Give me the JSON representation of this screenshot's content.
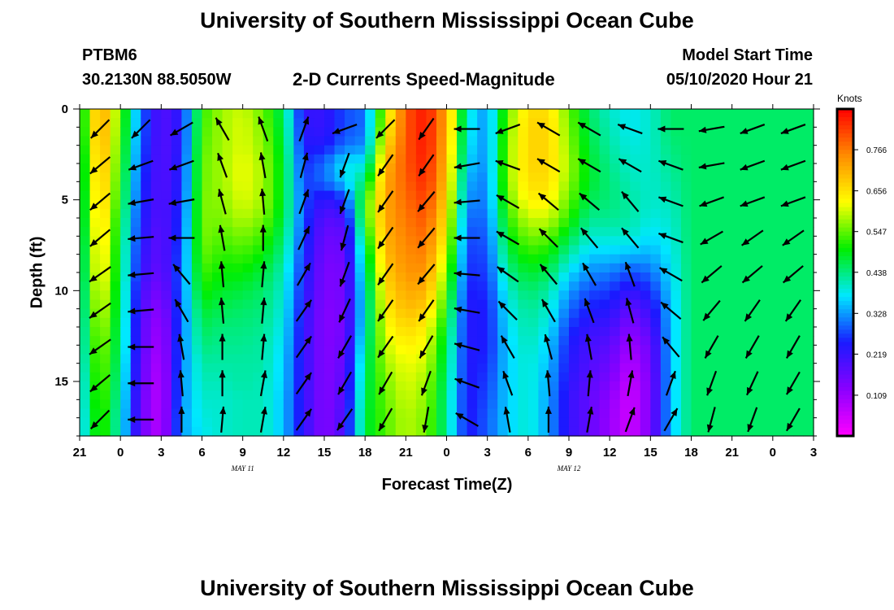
{
  "titles": {
    "top": "University of Southern Mississippi Ocean Cube",
    "bottom": "University of Southern Mississippi Ocean Cube",
    "station": "PTBM6",
    "coords": "30.2130N 88.5050W",
    "subtitle": "2-D Currents Speed-Magnitude",
    "model_start_label": "Model Start Time",
    "model_start_value": "05/10/2020 Hour 21"
  },
  "chart_data": {
    "type": "heatmap",
    "title": "2-D Currents Speed-Magnitude",
    "xlabel": "Forecast Time(Z)",
    "ylabel": "Depth (ft)",
    "x_ticks": [
      "21",
      "0",
      "3",
      "6",
      "9",
      "12",
      "15",
      "18",
      "21",
      "0",
      "3",
      "6",
      "9",
      "12",
      "15",
      "18",
      "21",
      "0",
      "3"
    ],
    "x_tick_hours": [
      0,
      3,
      6,
      9,
      12,
      15,
      18,
      21,
      24,
      27,
      30,
      33,
      36,
      39,
      42,
      45,
      48,
      51,
      54
    ],
    "day_labels": [
      {
        "label": "MAY 11",
        "hour": 12
      },
      {
        "label": "MAY 12",
        "hour": 36
      }
    ],
    "xlim": [
      0,
      54
    ],
    "y_ticks": [
      0,
      5,
      10,
      15
    ],
    "ylim": [
      0,
      18
    ],
    "y_direction": "down",
    "colorbar": {
      "title": "Knots",
      "ticks": [
        0.109,
        0.219,
        0.328,
        0.438,
        0.547,
        0.656,
        0.766
      ],
      "range": [
        0,
        0.875
      ],
      "colors": [
        "#ff00ff",
        "#8a00ff",
        "#1a1aff",
        "#00e8ff",
        "#00ee00",
        "#ffff00",
        "#ff8c00",
        "#ff0000"
      ]
    },
    "speed_profile_knots": [
      {
        "hour": 0.0,
        "values": [
          0.45,
          0.45,
          0.44,
          0.43,
          0.43,
          0.42,
          0.42,
          0.41,
          0.4,
          0.4,
          0.39,
          0.39,
          0.38,
          0.38,
          0.37,
          0.36,
          0.36,
          0.35,
          0.35
        ]
      },
      {
        "hour": 1.5,
        "values": [
          0.74,
          0.74,
          0.73,
          0.72,
          0.71,
          0.7,
          0.69,
          0.68,
          0.67,
          0.66,
          0.64,
          0.62,
          0.6,
          0.58,
          0.57,
          0.56,
          0.55,
          0.54,
          0.54
        ]
      },
      {
        "hour": 3.0,
        "values": [
          0.55,
          0.54,
          0.53,
          0.52,
          0.51,
          0.5,
          0.48,
          0.47,
          0.46,
          0.46,
          0.45,
          0.45,
          0.44,
          0.44,
          0.43,
          0.42,
          0.41,
          0.4,
          0.4
        ]
      },
      {
        "hour": 4.5,
        "values": [
          0.3,
          0.3,
          0.29,
          0.28,
          0.27,
          0.26,
          0.25,
          0.24,
          0.23,
          0.22,
          0.2,
          0.19,
          0.18,
          0.18,
          0.17,
          0.17,
          0.16,
          0.16,
          0.16
        ]
      },
      {
        "hour": 6.0,
        "values": [
          0.18,
          0.18,
          0.18,
          0.18,
          0.18,
          0.18,
          0.18,
          0.17,
          0.17,
          0.16,
          0.14,
          0.12,
          0.1,
          0.09,
          0.08,
          0.07,
          0.07,
          0.07,
          0.07
        ]
      },
      {
        "hour": 7.5,
        "values": [
          0.24,
          0.24,
          0.24,
          0.25,
          0.25,
          0.26,
          0.27,
          0.28,
          0.29,
          0.3,
          0.3,
          0.3,
          0.3,
          0.31,
          0.31,
          0.32,
          0.32,
          0.33,
          0.33
        ]
      },
      {
        "hour": 9.0,
        "values": [
          0.52,
          0.53,
          0.54,
          0.55,
          0.55,
          0.56,
          0.56,
          0.56,
          0.55,
          0.53,
          0.51,
          0.48,
          0.46,
          0.44,
          0.42,
          0.41,
          0.4,
          0.39,
          0.38
        ]
      },
      {
        "hour": 10.5,
        "values": [
          0.58,
          0.58,
          0.58,
          0.58,
          0.58,
          0.57,
          0.56,
          0.54,
          0.52,
          0.5,
          0.48,
          0.46,
          0.44,
          0.43,
          0.42,
          0.41,
          0.4,
          0.4,
          0.4
        ]
      },
      {
        "hour": 12.0,
        "values": [
          0.6,
          0.61,
          0.61,
          0.62,
          0.62,
          0.61,
          0.59,
          0.56,
          0.53,
          0.5,
          0.47,
          0.45,
          0.44,
          0.43,
          0.42,
          0.42,
          0.41,
          0.41,
          0.41
        ]
      },
      {
        "hour": 13.5,
        "values": [
          0.55,
          0.56,
          0.57,
          0.58,
          0.58,
          0.58,
          0.56,
          0.53,
          0.5,
          0.47,
          0.45,
          0.44,
          0.43,
          0.42,
          0.42,
          0.41,
          0.41,
          0.41,
          0.41
        ]
      },
      {
        "hour": 15.0,
        "values": [
          0.45,
          0.46,
          0.47,
          0.48,
          0.48,
          0.48,
          0.47,
          0.45,
          0.43,
          0.41,
          0.4,
          0.39,
          0.38,
          0.37,
          0.36,
          0.36,
          0.35,
          0.35,
          0.35
        ]
      },
      {
        "hour": 16.5,
        "values": [
          0.22,
          0.23,
          0.24,
          0.26,
          0.27,
          0.28,
          0.28,
          0.27,
          0.26,
          0.25,
          0.24,
          0.23,
          0.22,
          0.22,
          0.22,
          0.22,
          0.22,
          0.22,
          0.22
        ]
      },
      {
        "hour": 18.0,
        "values": [
          0.22,
          0.22,
          0.24,
          0.3,
          0.3,
          0.22,
          0.18,
          0.16,
          0.15,
          0.14,
          0.14,
          0.13,
          0.13,
          0.13,
          0.13,
          0.13,
          0.13,
          0.13,
          0.13
        ]
      },
      {
        "hour": 19.5,
        "values": [
          0.28,
          0.28,
          0.3,
          0.38,
          0.36,
          0.26,
          0.2,
          0.17,
          0.16,
          0.15,
          0.15,
          0.15,
          0.15,
          0.16,
          0.17,
          0.18,
          0.19,
          0.2,
          0.2
        ]
      },
      {
        "hour": 21.0,
        "values": [
          0.3,
          0.3,
          0.32,
          0.38,
          0.45,
          0.52,
          0.52,
          0.48,
          0.44,
          0.42,
          0.4,
          0.39,
          0.4,
          0.42,
          0.44,
          0.45,
          0.46,
          0.47,
          0.47
        ]
      },
      {
        "hour": 22.5,
        "values": [
          0.6,
          0.62,
          0.66,
          0.7,
          0.72,
          0.72,
          0.72,
          0.71,
          0.7,
          0.68,
          0.66,
          0.64,
          0.62,
          0.6,
          0.58,
          0.56,
          0.55,
          0.54,
          0.54
        ]
      },
      {
        "hour": 24.0,
        "values": [
          0.8,
          0.8,
          0.8,
          0.8,
          0.79,
          0.78,
          0.77,
          0.76,
          0.75,
          0.74,
          0.72,
          0.7,
          0.67,
          0.64,
          0.62,
          0.61,
          0.6,
          0.59,
          0.59
        ]
      },
      {
        "hour": 25.5,
        "values": [
          0.86,
          0.86,
          0.86,
          0.85,
          0.84,
          0.82,
          0.8,
          0.78,
          0.76,
          0.74,
          0.71,
          0.68,
          0.64,
          0.62,
          0.6,
          0.58,
          0.57,
          0.56,
          0.56
        ]
      },
      {
        "hour": 27.0,
        "values": [
          0.72,
          0.72,
          0.71,
          0.7,
          0.69,
          0.67,
          0.65,
          0.63,
          0.6,
          0.57,
          0.54,
          0.51,
          0.48,
          0.46,
          0.45,
          0.44,
          0.43,
          0.43,
          0.43
        ]
      },
      {
        "hour": 28.5,
        "values": [
          0.4,
          0.39,
          0.38,
          0.36,
          0.34,
          0.32,
          0.3,
          0.28,
          0.27,
          0.26,
          0.25,
          0.24,
          0.24,
          0.24,
          0.24,
          0.24,
          0.24,
          0.24,
          0.24
        ]
      },
      {
        "hour": 30.0,
        "values": [
          0.32,
          0.32,
          0.32,
          0.32,
          0.31,
          0.31,
          0.3,
          0.29,
          0.28,
          0.27,
          0.26,
          0.25,
          0.25,
          0.25,
          0.26,
          0.27,
          0.28,
          0.29,
          0.29
        ]
      },
      {
        "hour": 31.5,
        "values": [
          0.55,
          0.56,
          0.57,
          0.57,
          0.57,
          0.55,
          0.52,
          0.49,
          0.46,
          0.43,
          0.4,
          0.38,
          0.37,
          0.36,
          0.36,
          0.36,
          0.36,
          0.36,
          0.36
        ]
      },
      {
        "hour": 33.0,
        "values": [
          0.66,
          0.67,
          0.67,
          0.67,
          0.66,
          0.64,
          0.6,
          0.56,
          0.52,
          0.48,
          0.45,
          0.43,
          0.42,
          0.41,
          0.4,
          0.4,
          0.4,
          0.4,
          0.4
        ]
      },
      {
        "hour": 34.5,
        "values": [
          0.66,
          0.67,
          0.67,
          0.67,
          0.66,
          0.64,
          0.6,
          0.55,
          0.5,
          0.46,
          0.42,
          0.4,
          0.38,
          0.36,
          0.35,
          0.34,
          0.33,
          0.33,
          0.33
        ]
      },
      {
        "hour": 36.0,
        "values": [
          0.55,
          0.56,
          0.57,
          0.58,
          0.57,
          0.55,
          0.52,
          0.47,
          0.42,
          0.37,
          0.33,
          0.3,
          0.27,
          0.25,
          0.24,
          0.23,
          0.22,
          0.22,
          0.22
        ]
      },
      {
        "hour": 37.5,
        "values": [
          0.45,
          0.46,
          0.47,
          0.48,
          0.48,
          0.46,
          0.43,
          0.4,
          0.36,
          0.32,
          0.28,
          0.25,
          0.22,
          0.2,
          0.19,
          0.18,
          0.17,
          0.17,
          0.17
        ]
      },
      {
        "hour": 39.0,
        "values": [
          0.4,
          0.41,
          0.42,
          0.43,
          0.44,
          0.44,
          0.43,
          0.4,
          0.36,
          0.31,
          0.27,
          0.24,
          0.21,
          0.18,
          0.16,
          0.14,
          0.12,
          0.11,
          0.11
        ]
      },
      {
        "hour": 40.5,
        "values": [
          0.38,
          0.38,
          0.39,
          0.4,
          0.41,
          0.42,
          0.42,
          0.4,
          0.35,
          0.28,
          0.22,
          0.17,
          0.13,
          0.1,
          0.08,
          0.06,
          0.05,
          0.05,
          0.05
        ]
      },
      {
        "hour": 42.0,
        "values": [
          0.4,
          0.4,
          0.4,
          0.4,
          0.4,
          0.4,
          0.39,
          0.37,
          0.34,
          0.3,
          0.26,
          0.22,
          0.19,
          0.16,
          0.15,
          0.14,
          0.14,
          0.14,
          0.14
        ]
      },
      {
        "hour": 43.5,
        "values": [
          0.45,
          0.45,
          0.44,
          0.43,
          0.42,
          0.41,
          0.4,
          0.39,
          0.38,
          0.37,
          0.36,
          0.35,
          0.35,
          0.35,
          0.35,
          0.35,
          0.35,
          0.35,
          0.35
        ]
      },
      {
        "hour": 45.0,
        "values": [
          0.45,
          0.45,
          0.45,
          0.45,
          0.45,
          0.45,
          0.45,
          0.45,
          0.45,
          0.45,
          0.45,
          0.45,
          0.45,
          0.45,
          0.45,
          0.45,
          0.45,
          0.45,
          0.45
        ]
      }
    ],
    "profile_note": "",
    "vectors": {
      "columns_hours": [
        1.5,
        4.5,
        7.5,
        10.5,
        13.5,
        16.5,
        19.5,
        22.5,
        25.5,
        28.5,
        31.5,
        34.5,
        37.5,
        40.5,
        43.5,
        46.5,
        49.5,
        52.5
      ],
      "rows_depth_ft": [
        0.5,
        2.5,
        4.5,
        6.5,
        8.5,
        10.5,
        12.5,
        14.5,
        16.5
      ],
      "direction_deg": [
        [
          225,
          225,
          240,
          330,
          340,
          20,
          250,
          225,
          215,
          270,
          250,
          300,
          300,
          290,
          270,
          260,
          250,
          250
        ],
        [
          230,
          250,
          250,
          340,
          350,
          15,
          200,
          215,
          215,
          260,
          290,
          300,
          300,
          300,
          290,
          260,
          250,
          250
        ],
        [
          230,
          260,
          260,
          345,
          355,
          20,
          200,
          215,
          220,
          265,
          300,
          310,
          310,
          320,
          290,
          250,
          250,
          250
        ],
        [
          230,
          265,
          270,
          350,
          0,
          25,
          195,
          215,
          220,
          270,
          300,
          315,
          320,
          320,
          290,
          240,
          235,
          235
        ],
        [
          235,
          265,
          320,
          355,
          5,
          30,
          200,
          215,
          220,
          275,
          305,
          320,
          330,
          340,
          300,
          230,
          230,
          230
        ],
        [
          235,
          265,
          330,
          355,
          5,
          35,
          205,
          215,
          215,
          280,
          315,
          330,
          340,
          345,
          310,
          220,
          215,
          215
        ],
        [
          235,
          270,
          350,
          0,
          5,
          35,
          210,
          215,
          210,
          285,
          330,
          345,
          350,
          355,
          320,
          210,
          210,
          210
        ],
        [
          230,
          270,
          355,
          0,
          10,
          35,
          210,
          210,
          200,
          290,
          340,
          355,
          5,
          10,
          20,
          200,
          205,
          210
        ],
        [
          225,
          270,
          0,
          5,
          10,
          35,
          215,
          210,
          190,
          300,
          350,
          0,
          10,
          20,
          30,
          195,
          200,
          210
        ]
      ]
    }
  }
}
